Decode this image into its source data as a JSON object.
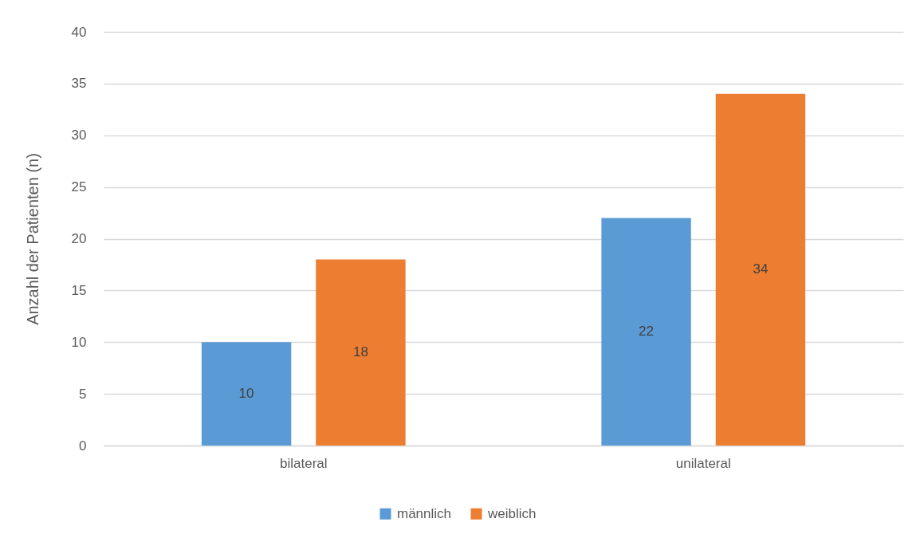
{
  "chart_data": {
    "type": "bar",
    "categories": [
      "bilateral",
      "unilateral"
    ],
    "series": [
      {
        "name": "männlich",
        "color": "#5b9bd5",
        "values": [
          10,
          22
        ]
      },
      {
        "name": "weiblich",
        "color": "#ed7d31",
        "values": [
          18,
          34
        ]
      }
    ],
    "ylabel": "Anzahl der Patienten (n)",
    "ylim": [
      0,
      40
    ],
    "yticks": [
      0,
      5,
      10,
      15,
      20,
      25,
      30,
      35,
      40
    ],
    "grid": "y",
    "legend": "bottom",
    "data_labels": true
  }
}
